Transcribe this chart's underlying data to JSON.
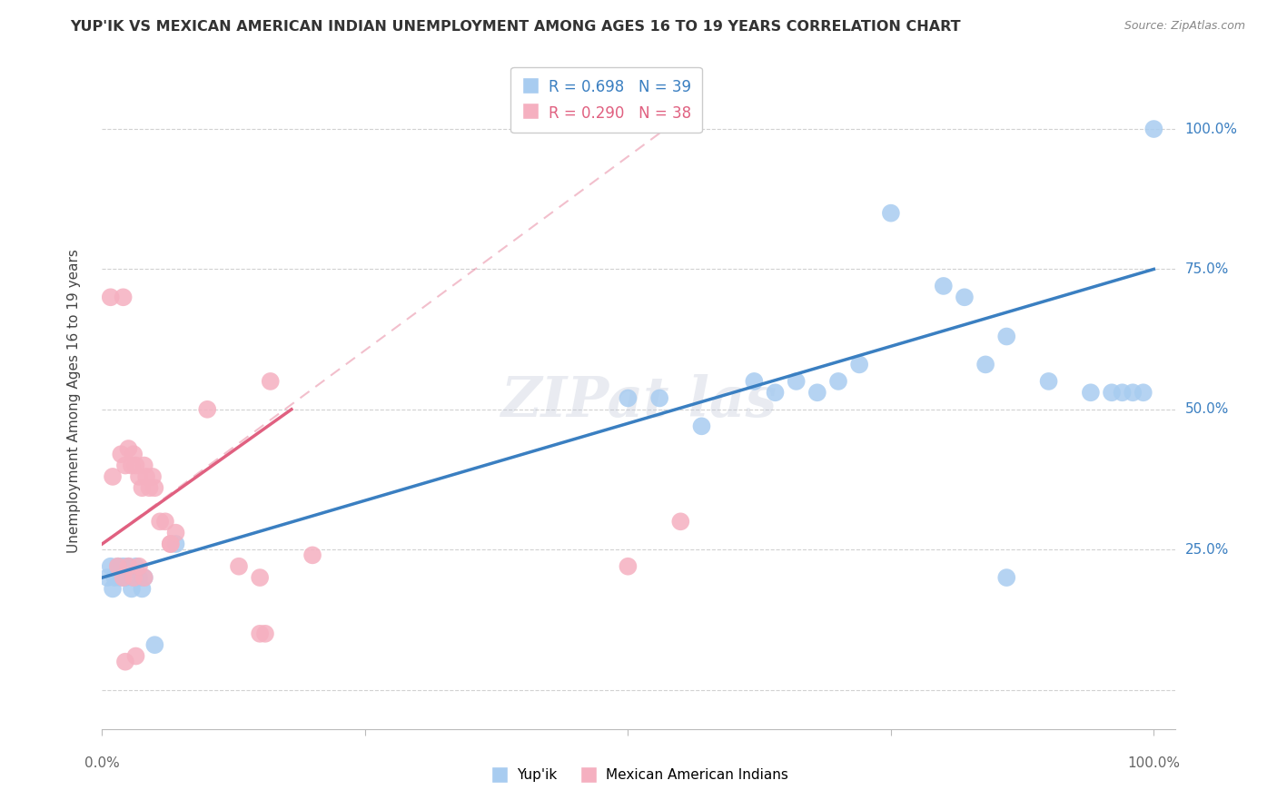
{
  "title": "YUP'IK VS MEXICAN AMERICAN INDIAN UNEMPLOYMENT AMONG AGES 16 TO 19 YEARS CORRELATION CHART",
  "source": "Source: ZipAtlas.com",
  "ylabel": "Unemployment Among Ages 16 to 19 years",
  "legend_blue_r": "R = 0.698",
  "legend_blue_n": "N = 39",
  "legend_pink_r": "R = 0.290",
  "legend_pink_n": "N = 38",
  "legend_label_blue": "Yup'ik",
  "legend_label_pink": "Mexican American Indians",
  "blue_color": "#A8CCF0",
  "pink_color": "#F5B0C0",
  "blue_line_color": "#3A7FC1",
  "pink_line_color": "#E06080",
  "blue_scatter": [
    [
      0.005,
      0.2
    ],
    [
      0.008,
      0.22
    ],
    [
      0.01,
      0.18
    ],
    [
      0.012,
      0.2
    ],
    [
      0.015,
      0.22
    ],
    [
      0.018,
      0.2
    ],
    [
      0.02,
      0.22
    ],
    [
      0.022,
      0.2
    ],
    [
      0.025,
      0.22
    ],
    [
      0.028,
      0.18
    ],
    [
      0.03,
      0.2
    ],
    [
      0.032,
      0.22
    ],
    [
      0.035,
      0.2
    ],
    [
      0.038,
      0.18
    ],
    [
      0.04,
      0.2
    ],
    [
      0.05,
      0.08
    ],
    [
      0.07,
      0.26
    ],
    [
      0.5,
      0.52
    ],
    [
      0.53,
      0.52
    ],
    [
      0.57,
      0.47
    ],
    [
      0.62,
      0.55
    ],
    [
      0.64,
      0.53
    ],
    [
      0.66,
      0.55
    ],
    [
      0.68,
      0.53
    ],
    [
      0.7,
      0.55
    ],
    [
      0.72,
      0.58
    ],
    [
      0.75,
      0.85
    ],
    [
      0.8,
      0.72
    ],
    [
      0.82,
      0.7
    ],
    [
      0.84,
      0.58
    ],
    [
      0.86,
      0.63
    ],
    [
      0.9,
      0.55
    ],
    [
      0.94,
      0.53
    ],
    [
      0.96,
      0.53
    ],
    [
      0.97,
      0.53
    ],
    [
      0.98,
      0.53
    ],
    [
      0.99,
      0.53
    ],
    [
      1.0,
      1.0
    ],
    [
      0.86,
      0.2
    ]
  ],
  "pink_scatter": [
    [
      0.008,
      0.7
    ],
    [
      0.02,
      0.7
    ],
    [
      0.01,
      0.38
    ],
    [
      0.018,
      0.42
    ],
    [
      0.022,
      0.4
    ],
    [
      0.025,
      0.43
    ],
    [
      0.028,
      0.4
    ],
    [
      0.03,
      0.42
    ],
    [
      0.032,
      0.4
    ],
    [
      0.035,
      0.38
    ],
    [
      0.038,
      0.36
    ],
    [
      0.04,
      0.4
    ],
    [
      0.042,
      0.38
    ],
    [
      0.045,
      0.36
    ],
    [
      0.048,
      0.38
    ],
    [
      0.05,
      0.36
    ],
    [
      0.055,
      0.3
    ],
    [
      0.06,
      0.3
    ],
    [
      0.065,
      0.26
    ],
    [
      0.07,
      0.28
    ],
    [
      0.1,
      0.5
    ],
    [
      0.13,
      0.22
    ],
    [
      0.15,
      0.2
    ],
    [
      0.155,
      0.1
    ],
    [
      0.16,
      0.55
    ],
    [
      0.2,
      0.24
    ],
    [
      0.5,
      0.22
    ],
    [
      0.55,
      0.3
    ],
    [
      0.015,
      0.22
    ],
    [
      0.02,
      0.2
    ],
    [
      0.025,
      0.22
    ],
    [
      0.03,
      0.2
    ],
    [
      0.035,
      0.22
    ],
    [
      0.04,
      0.2
    ],
    [
      0.022,
      0.05
    ],
    [
      0.15,
      0.1
    ],
    [
      0.032,
      0.06
    ],
    [
      0.065,
      0.26
    ]
  ],
  "blue_line": [
    [
      0.0,
      0.2
    ],
    [
      1.0,
      0.75
    ]
  ],
  "pink_line_solid": [
    [
      0.0,
      0.26
    ],
    [
      0.18,
      0.5
    ]
  ],
  "pink_line_dash": [
    [
      0.0,
      0.26
    ],
    [
      0.55,
      1.02
    ]
  ],
  "xlim": [
    0.0,
    1.02
  ],
  "ylim": [
    -0.07,
    1.1
  ],
  "yticks": [
    0.0,
    0.25,
    0.5,
    0.75,
    1.0
  ],
  "ytick_labels": [
    "",
    "25.0%",
    "50.0%",
    "75.0%",
    "100.0%"
  ],
  "xtick_left": "0.0%",
  "xtick_right": "100.0%"
}
